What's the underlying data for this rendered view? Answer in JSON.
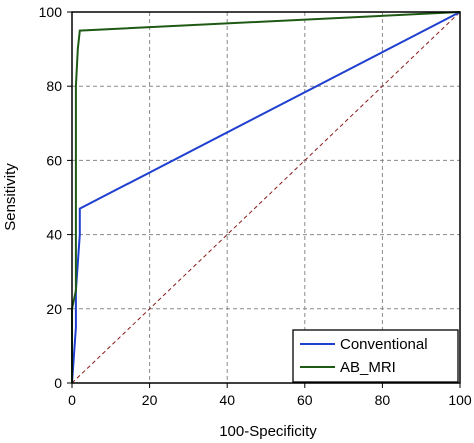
{
  "chart_data": {
    "type": "line",
    "title": "",
    "xlabel": "100-Specificity",
    "ylabel": "Sensitivity",
    "xlim": [
      0,
      100
    ],
    "ylim": [
      0,
      100
    ],
    "xticks": [
      0,
      20,
      40,
      60,
      80,
      100
    ],
    "yticks": [
      0,
      20,
      40,
      60,
      80,
      100
    ],
    "xtick_labels": [
      "0",
      "20",
      "40",
      "60",
      "80",
      "100"
    ],
    "ytick_labels": [
      "0",
      "20",
      "40",
      "60",
      "80",
      "100"
    ],
    "grid": true,
    "legend_position": "bottom-right",
    "series": [
      {
        "name": "Conventional",
        "color": "#1f3fd1",
        "x": [
          0,
          1,
          1,
          2,
          2,
          100
        ],
        "y": [
          0,
          15,
          25,
          40,
          47,
          100
        ]
      },
      {
        "name": "AB_MRI",
        "color": "#1f5a14",
        "x": [
          0,
          0,
          1,
          1,
          1.5,
          2,
          100
        ],
        "y": [
          0,
          20,
          25,
          80,
          90,
          95,
          100
        ]
      }
    ],
    "reference_line": {
      "x": [
        0,
        100
      ],
      "y": [
        0,
        100
      ],
      "color": "#8b1a1a",
      "style": "dashed"
    }
  }
}
